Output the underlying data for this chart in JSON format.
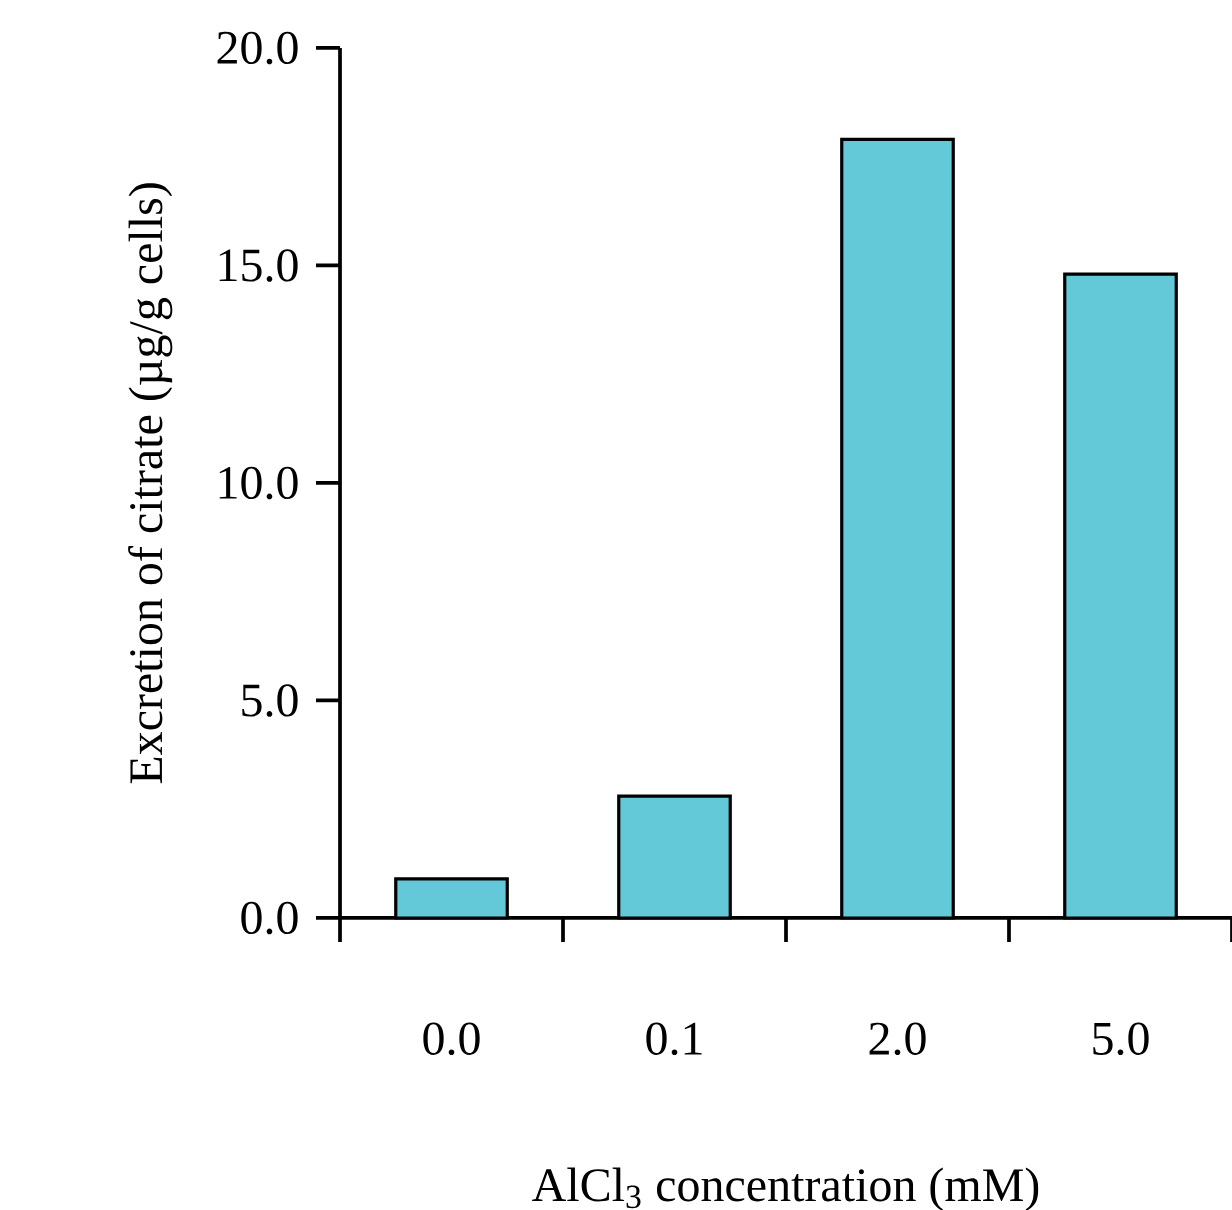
{
  "chart_data": {
    "type": "bar",
    "xlabel": "AlCl$_{3}$ concentration (mM)",
    "ylabel": "Excretion of citrate (µg/g cells)",
    "categories": [
      "0.0",
      "0.1",
      "2.0",
      "5.0"
    ],
    "values": [
      0.9,
      2.8,
      17.9,
      14.8
    ],
    "color": "#63c8d8",
    "ylim": [
      0,
      20
    ],
    "yticks": [
      {
        "value": 0,
        "label": "0.0"
      },
      {
        "value": 5,
        "label": "5.0"
      },
      {
        "value": 10,
        "label": "10.0"
      },
      {
        "value": 15,
        "label": "15.0"
      },
      {
        "value": 20,
        "label": "20.0"
      }
    ],
    "grid": false
  }
}
